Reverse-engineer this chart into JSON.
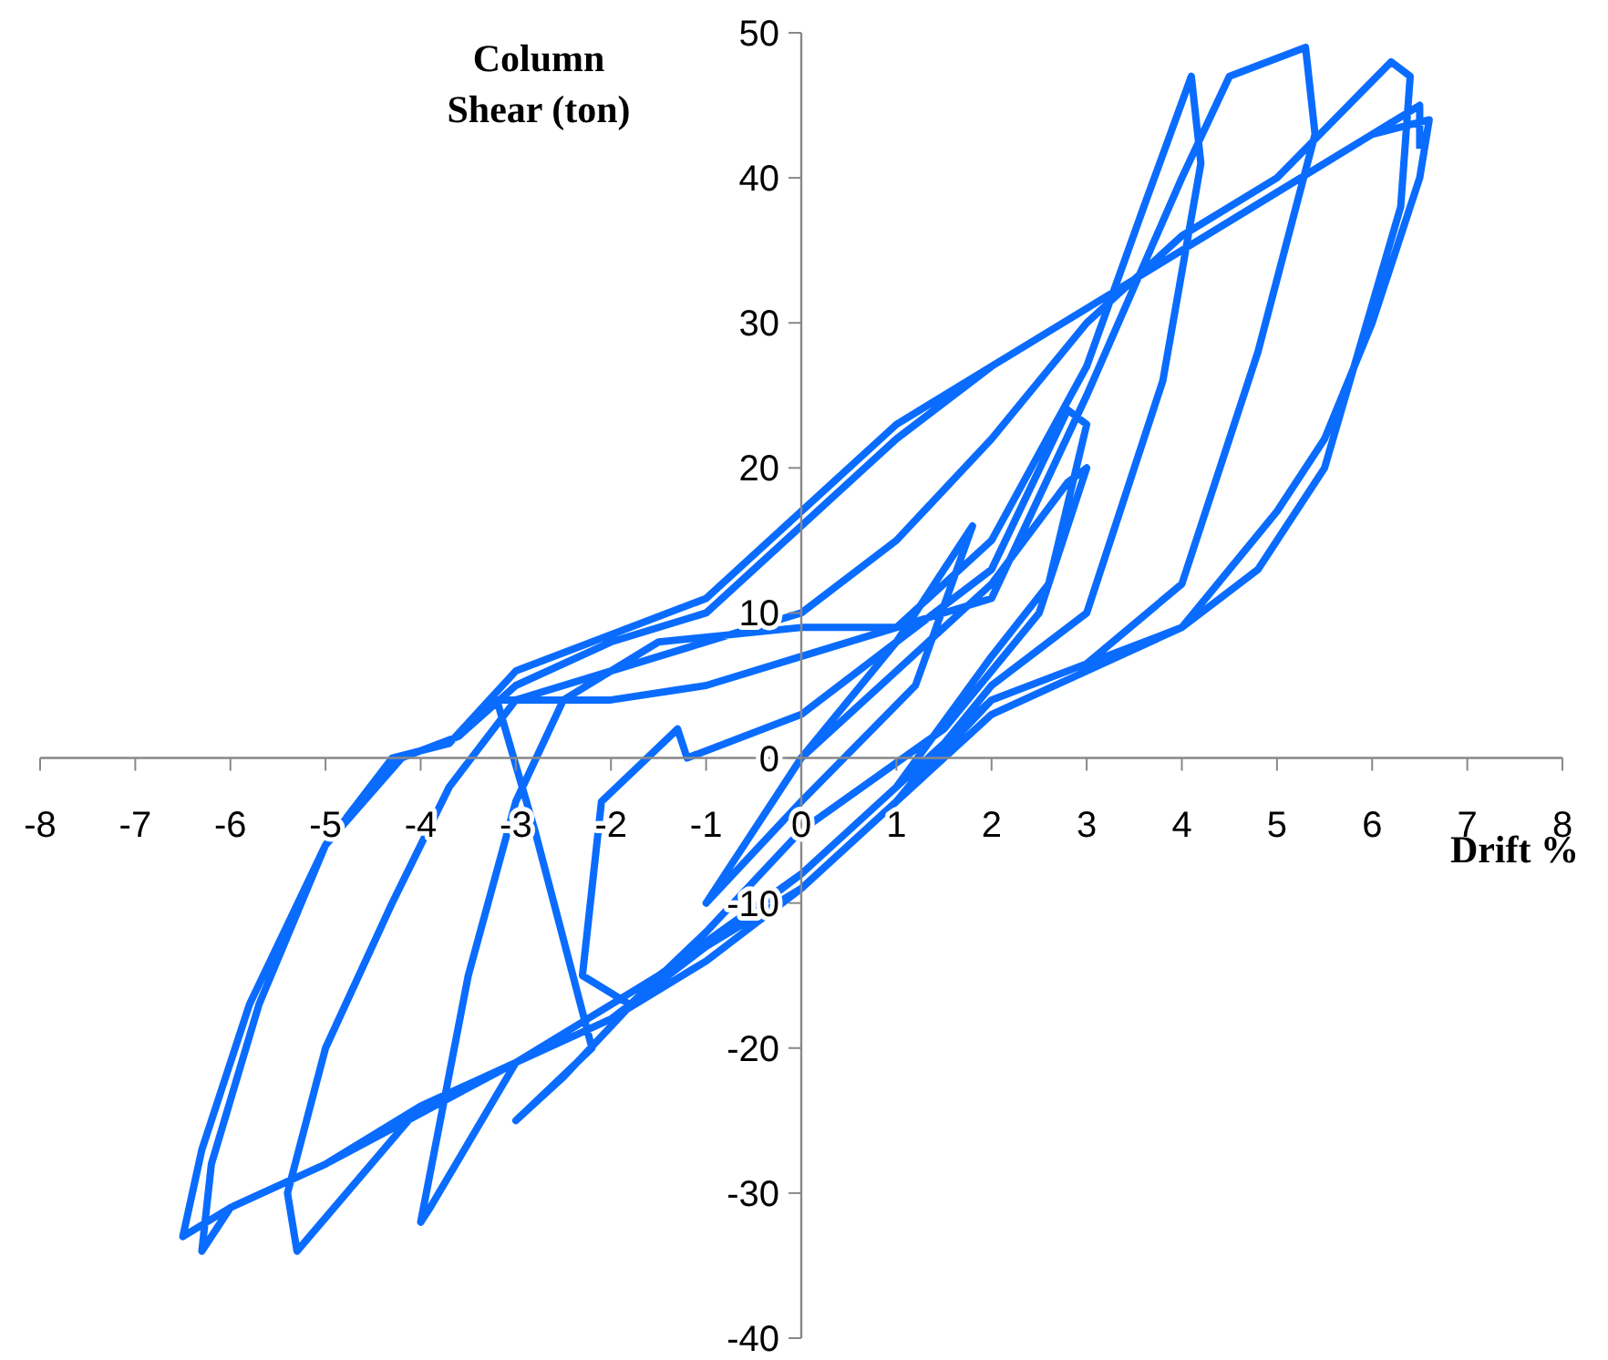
{
  "chart_data": {
    "type": "line",
    "xlabel": "Drift %",
    "ylabel": "Column Shear (ton)",
    "x": [
      0,
      1,
      1.8,
      1.2,
      0,
      -1,
      -0.5,
      0,
      1,
      2,
      2.8,
      3,
      2.5,
      1.5,
      0,
      -1,
      -1.8,
      -2.3,
      -2.1,
      -1.3,
      -1.2,
      0,
      1,
      2,
      2.8,
      3,
      2.6,
      2,
      1,
      0,
      -1.5,
      -2.5,
      -3,
      -2.2,
      -2.8,
      -3.2,
      -2,
      -1,
      0,
      1,
      2,
      3,
      3.6,
      4.1,
      4.2,
      3.8,
      3,
      2,
      1,
      0,
      -1,
      -2,
      -3,
      -3.9,
      -4,
      -3.5,
      -3,
      -2.5,
      -1.5,
      0,
      1,
      2,
      3,
      4,
      4.5,
      5.3,
      5.4,
      4.8,
      4,
      3,
      2,
      1,
      0,
      -1,
      -2,
      -3,
      -4,
      -5.3,
      -5.4,
      -5,
      -4.3,
      -3.7,
      -3,
      -2,
      0,
      1,
      2,
      3,
      4,
      5,
      5.6,
      6.2,
      6.4,
      6.3,
      5.5,
      4.8,
      4,
      3,
      2,
      1,
      0,
      -1,
      -2,
      -3,
      -4,
      -5,
      -6,
      -6.3,
      -6.2,
      -5.7,
      -5,
      -4.3,
      -3.7,
      -3,
      -2,
      -1,
      0,
      1,
      2,
      3,
      4,
      5,
      6,
      6.6,
      6.5,
      6,
      5.5,
      5,
      4,
      3,
      2,
      1,
      0,
      -1,
      -2,
      -3,
      -4,
      -5,
      -6,
      -6.5,
      -6.3,
      -5.8,
      -5,
      -4.2,
      -3.6,
      -3,
      -2,
      -1,
      0,
      1,
      2,
      3,
      4,
      5,
      6,
      6.5,
      6.5
    ],
    "series": [
      {
        "color": "#0a6cff",
        "values": [
          0,
          8,
          16,
          5,
          -3,
          -10,
          -5,
          0,
          6,
          12,
          19,
          20,
          10,
          2,
          -5,
          -12,
          -17,
          -15,
          -3,
          2,
          0,
          3,
          8,
          13,
          24,
          23,
          12,
          7,
          -2,
          -8,
          -15,
          -22,
          -25,
          -20,
          -5,
          4,
          4,
          5,
          7,
          9,
          15,
          27,
          38,
          47,
          41,
          26,
          10,
          5,
          -3,
          -9,
          -14,
          -18,
          -21,
          -31,
          -32,
          -15,
          -3,
          4,
          8,
          9,
          9,
          11,
          25,
          40,
          47,
          49,
          43,
          28,
          12,
          6.5,
          4,
          -3,
          -9,
          -14,
          -18,
          -21,
          -24,
          -34,
          -30,
          -20,
          -10,
          -2,
          4,
          6,
          10,
          15,
          22,
          30,
          36,
          40,
          44,
          48,
          47,
          38,
          20,
          13,
          9,
          6,
          3,
          -3,
          -9,
          -13,
          -18,
          -21,
          -24.5,
          -28,
          -31,
          -34,
          -28,
          -17,
          -6,
          0,
          1,
          6,
          8.5,
          11,
          17,
          23,
          27,
          31,
          35,
          39,
          43,
          44,
          40,
          30,
          22,
          17,
          9,
          6.5,
          4,
          -2,
          -8,
          -13,
          -17,
          -21,
          -24,
          -28,
          -31,
          -33,
          -27,
          -17,
          -6,
          0,
          1.5,
          5,
          8,
          10,
          16,
          22,
          27,
          31,
          35,
          39,
          43,
          45,
          42
        ]
      }
    ],
    "xlim": [
      -8,
      8
    ],
    "xticks": [
      -8,
      -7,
      -6,
      -5,
      -4,
      -3,
      -2,
      -1,
      0,
      1,
      2,
      3,
      4,
      5,
      6,
      7,
      8
    ],
    "ylim": [
      -40,
      50
    ],
    "yticks": [
      -40,
      -30,
      -20,
      -10,
      0,
      10,
      20,
      30,
      40,
      50
    ],
    "grid": false
  }
}
